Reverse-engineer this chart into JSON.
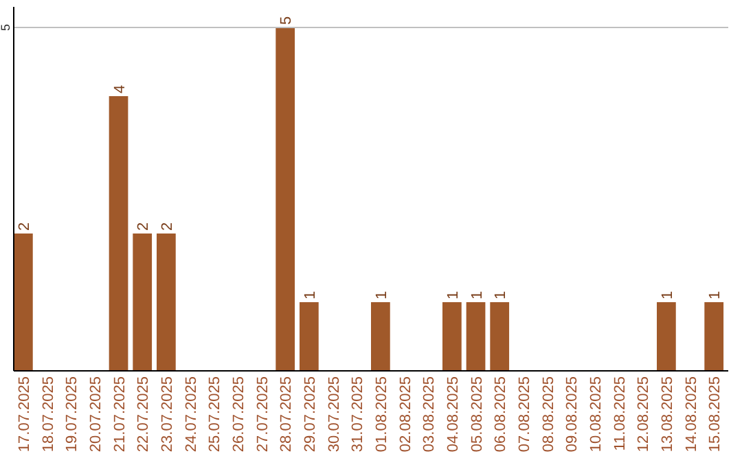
{
  "chart_data": {
    "type": "bar",
    "categories": [
      "17.07.2025",
      "18.07.2025",
      "19.07.2025",
      "20.07.2025",
      "21.07.2025",
      "22.07.2025",
      "23.07.2025",
      "24.07.2025",
      "25.07.2025",
      "26.07.2025",
      "27.07.2025",
      "28.07.2025",
      "29.07.2025",
      "30.07.2025",
      "31.07.2025",
      "01.08.2025",
      "02.08.2025",
      "03.08.2025",
      "04.08.2025",
      "05.08.2025",
      "06.08.2025",
      "07.08.2025",
      "08.08.2025",
      "09.08.2025",
      "10.08.2025",
      "11.08.2025",
      "12.08.2025",
      "13.08.2025",
      "14.08.2025",
      "15.08.2025"
    ],
    "values": [
      2,
      0,
      0,
      0,
      4,
      2,
      2,
      0,
      0,
      0,
      0,
      5,
      1,
      0,
      0,
      1,
      0,
      0,
      1,
      1,
      1,
      0,
      0,
      0,
      0,
      0,
      0,
      1,
      0,
      1
    ],
    "value_labels": [
      "2",
      null,
      null,
      null,
      "4",
      "2",
      "2",
      null,
      null,
      null,
      null,
      "5",
      "1",
      null,
      null,
      "1",
      null,
      null,
      "1",
      "1",
      "1",
      null,
      null,
      null,
      null,
      null,
      null,
      "1",
      null,
      "1"
    ],
    "color": "#a0592a",
    "ylim": [
      0,
      5.3
    ],
    "yticks": [
      5
    ],
    "grid": "y"
  }
}
